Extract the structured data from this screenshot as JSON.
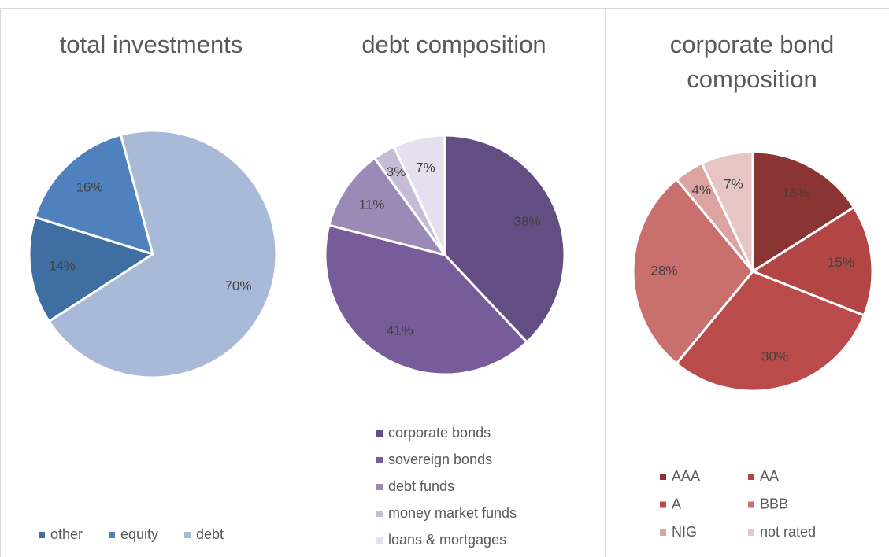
{
  "chart_data": [
    {
      "type": "pie",
      "title": "total investments",
      "start_angle": 237,
      "categories": [
        "other",
        "equity",
        "debt"
      ],
      "values": [
        14,
        16,
        70
      ],
      "value_labels": [
        "14%",
        "16%",
        "70%"
      ],
      "colors": [
        "#3f6ea3",
        "#4e81bd",
        "#a9b9d8"
      ],
      "legend": "bottom"
    },
    {
      "type": "pie",
      "title": "debt composition",
      "start_angle": 0,
      "categories": [
        "corporate bonds",
        "sovereign bonds",
        "debt funds",
        "money market funds",
        "loans & mortgages"
      ],
      "values": [
        38,
        41,
        11,
        3,
        7
      ],
      "value_labels": [
        "38%",
        "41%",
        "11%",
        "3%",
        "7%"
      ],
      "colors": [
        "#634e83",
        "#775c99",
        "#9c8ab6",
        "#c7bcd6",
        "#e5e0ed"
      ],
      "legend": "bottom"
    },
    {
      "type": "pie",
      "title": "corporate bond composition",
      "start_angle": 0,
      "categories": [
        "AAA",
        "AA",
        "A",
        "BBB",
        "NIG",
        "not rated"
      ],
      "values": [
        16,
        15,
        30,
        28,
        4,
        7
      ],
      "value_labels": [
        "16%",
        "15%",
        "30%",
        "28%",
        "4%",
        "7%"
      ],
      "colors": [
        "#8b3434",
        "#b44545",
        "#ba4b4a",
        "#c96f6e",
        "#dba3a2",
        "#e8c5c5"
      ],
      "legend": "bottom"
    }
  ]
}
